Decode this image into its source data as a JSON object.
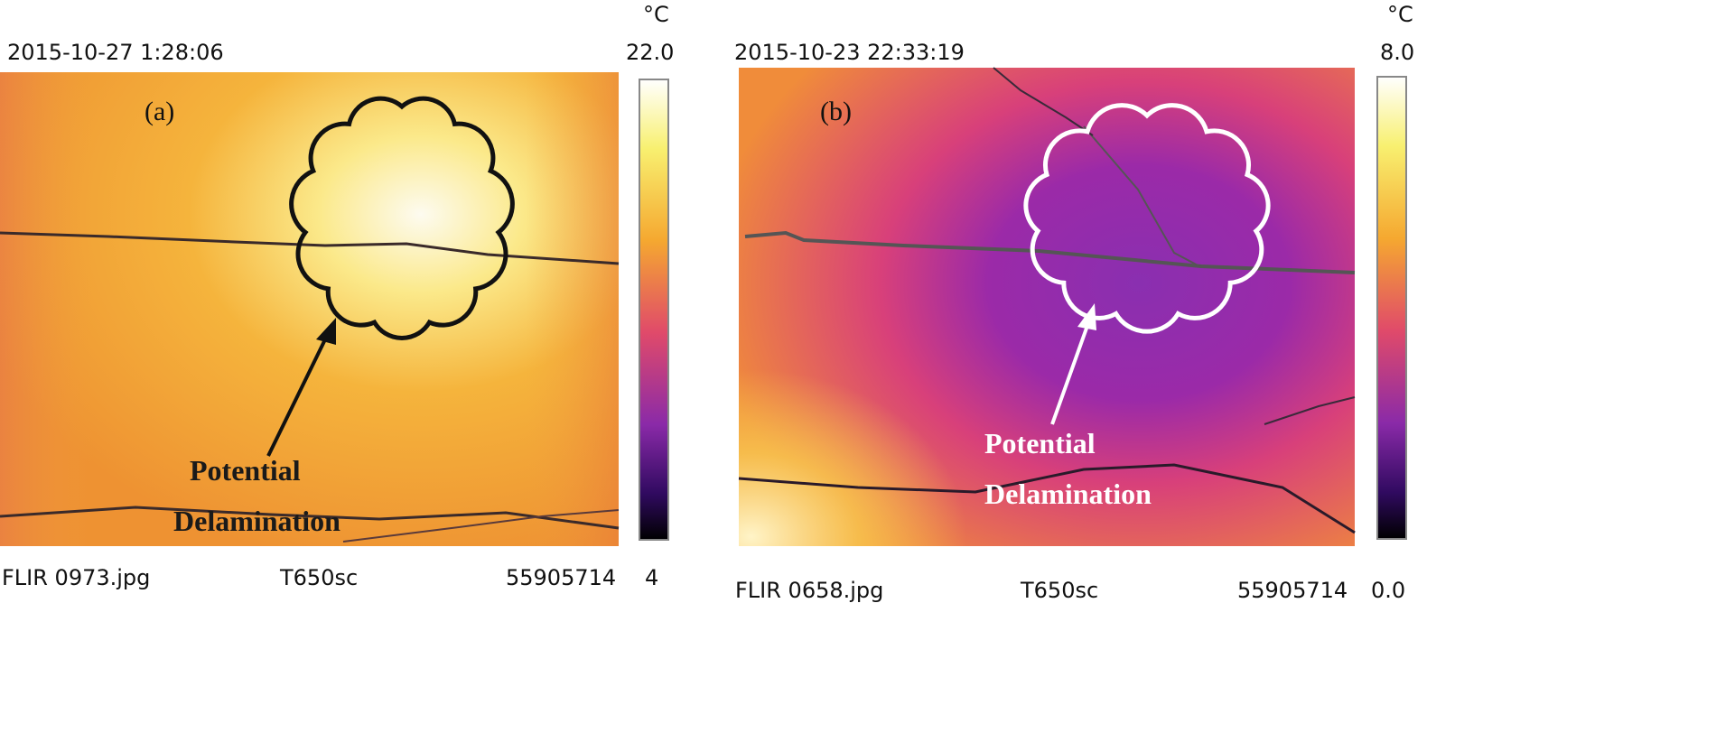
{
  "panels": [
    {
      "label": "(a)",
      "timestamp": "2015-10-27 1:28:06",
      "unit": "°C",
      "scale_max": "22.0",
      "scale_min": "4",
      "file": "FLIR 0973.jpg",
      "model": "T650sc",
      "serial": "55905714",
      "annotation": [
        "Potential",
        "Delamination"
      ]
    },
    {
      "label": "(b)",
      "timestamp": "2015-10-23 22:33:19",
      "unit": "°C",
      "scale_max": "8.0",
      "scale_min": "0.0",
      "file": "FLIR 0658.jpg",
      "model": "T650sc",
      "serial": "55905714",
      "annotation": [
        "Potential",
        "Delamination"
      ]
    }
  ]
}
